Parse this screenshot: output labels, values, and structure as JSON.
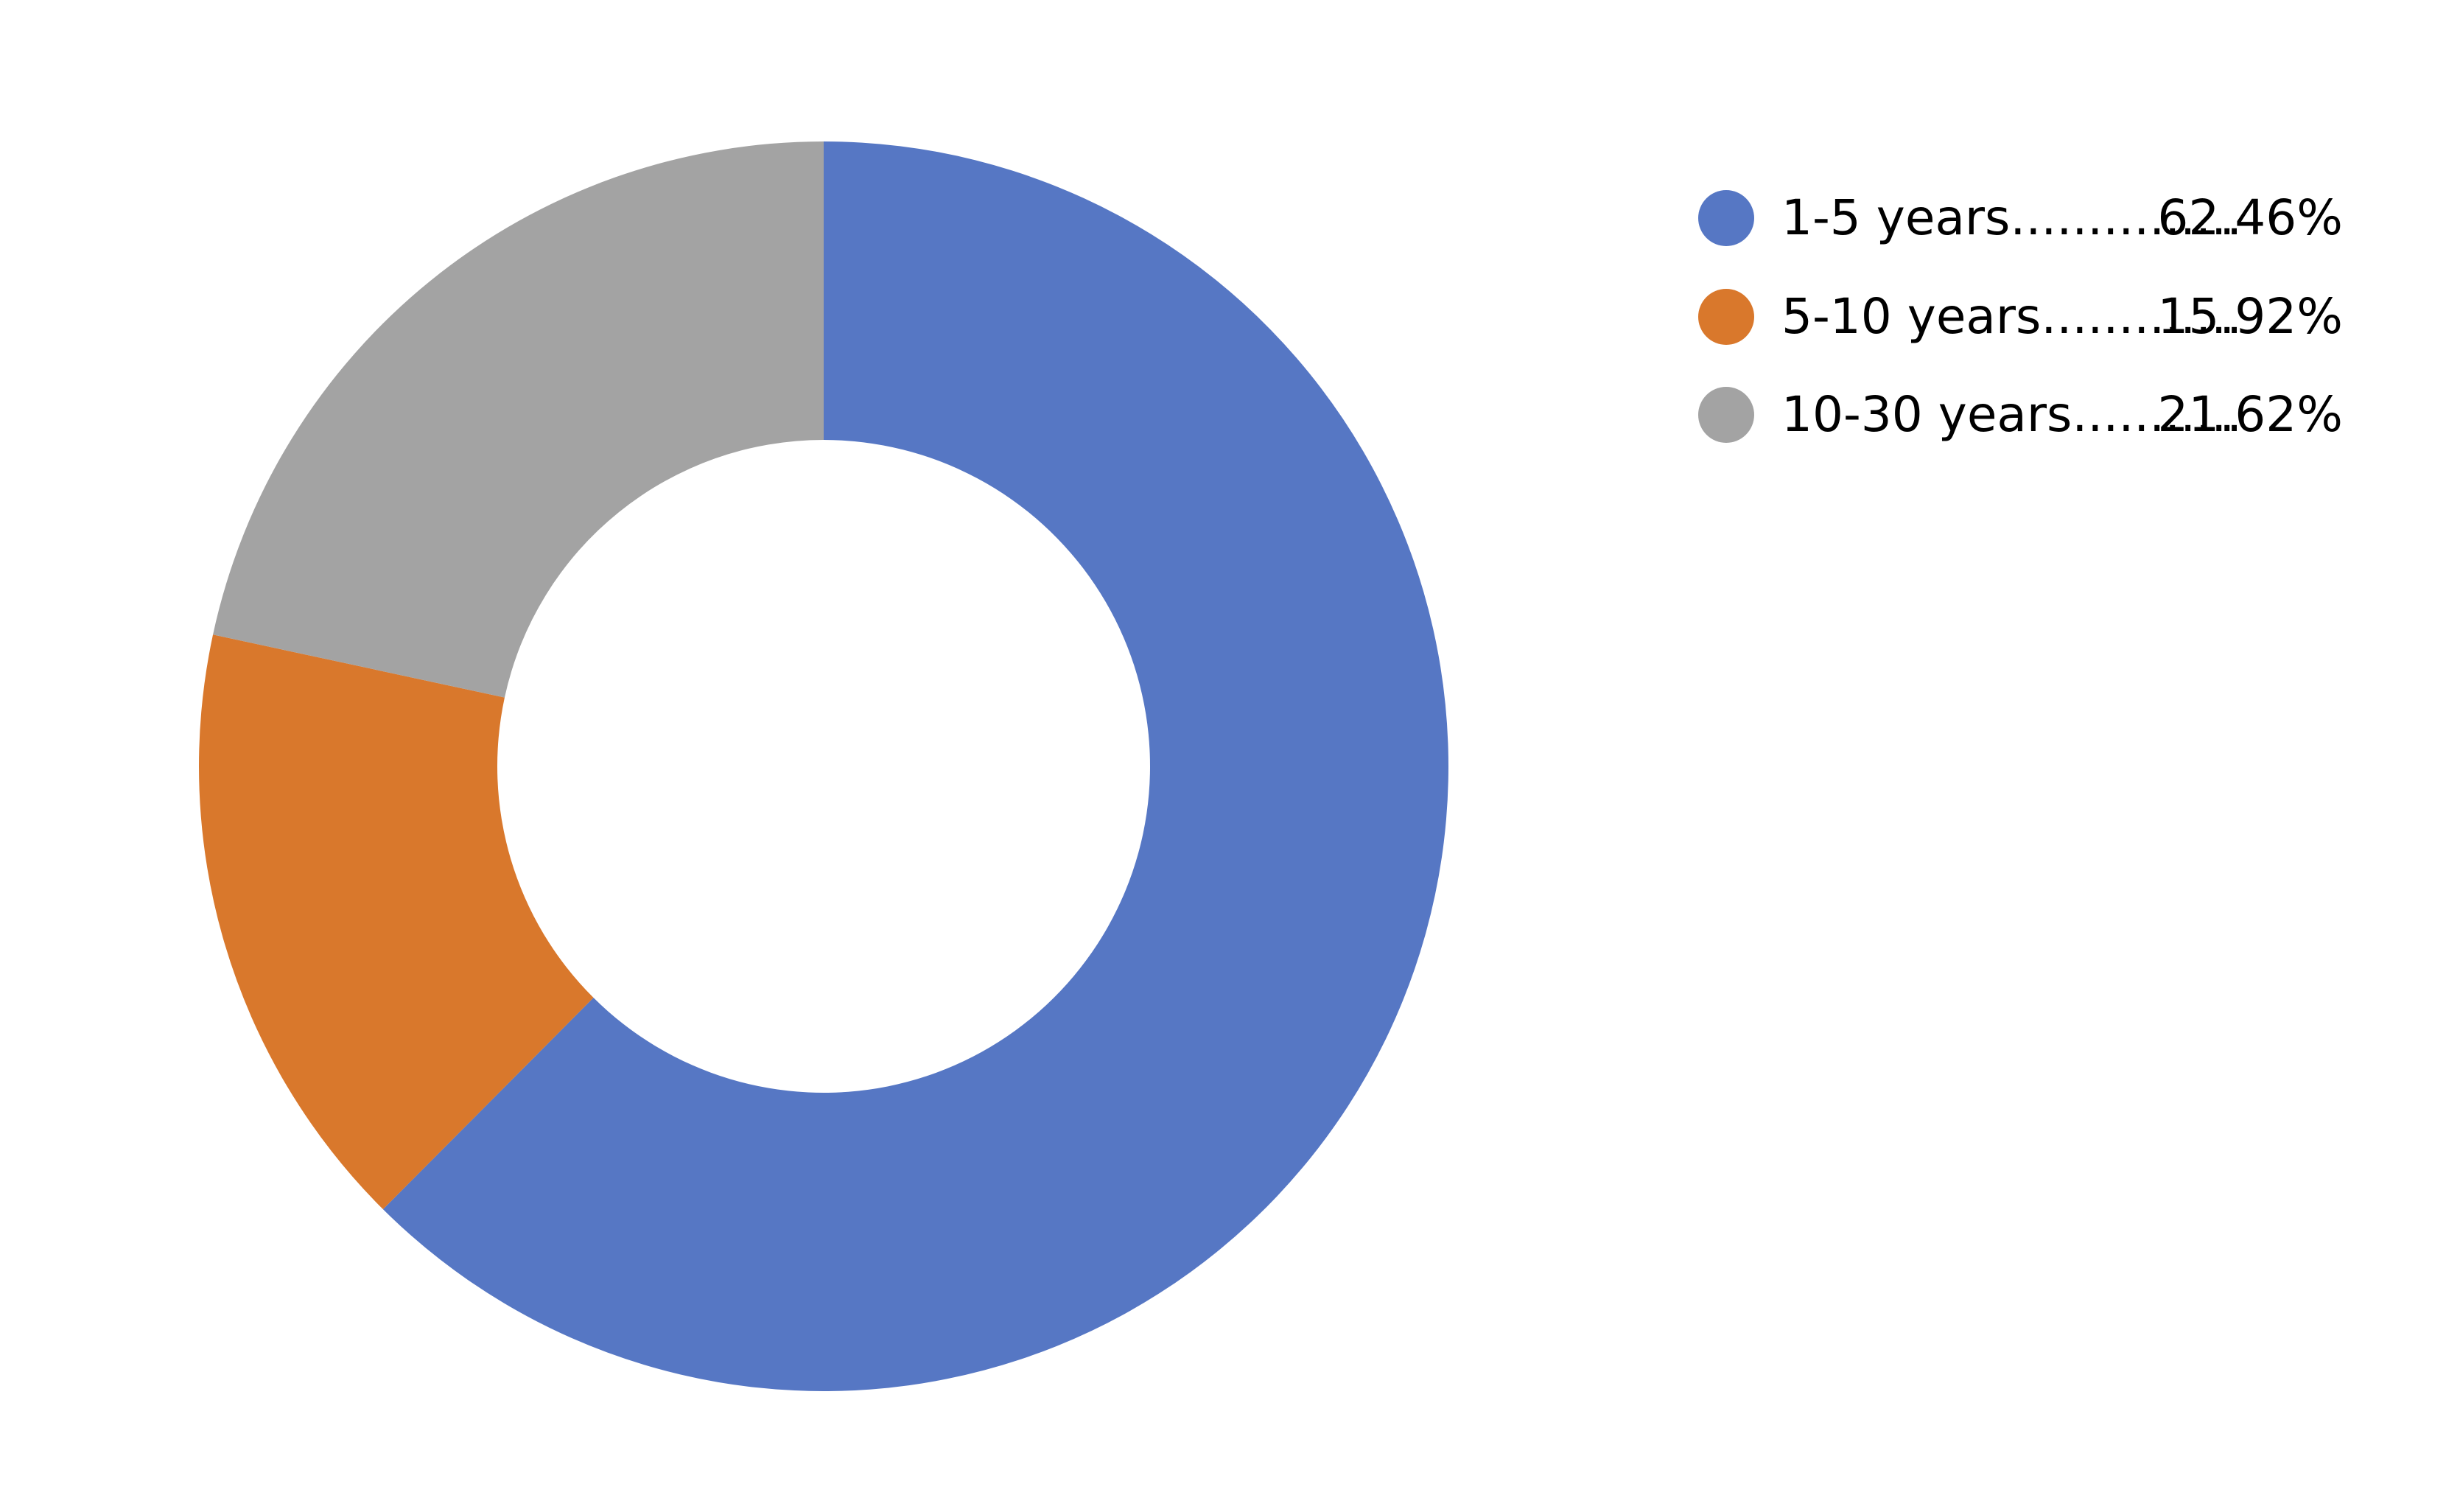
{
  "chart_data": {
    "type": "pie",
    "variant": "donut",
    "title": "",
    "legend_position": "right",
    "series": [
      {
        "name": "1-5 years",
        "value": 62.46,
        "value_label": "62.46%",
        "dots": "...............",
        "color": "#5677C4"
      },
      {
        "name": "5-10 years",
        "value": 15.92,
        "value_label": "15.92%",
        "dots": ".............",
        "color": "#D9782C"
      },
      {
        "name": "10-30 years",
        "value": 21.62,
        "value_label": "21.62%",
        "dots": "...........",
        "color": "#A3A3A3"
      }
    ]
  }
}
